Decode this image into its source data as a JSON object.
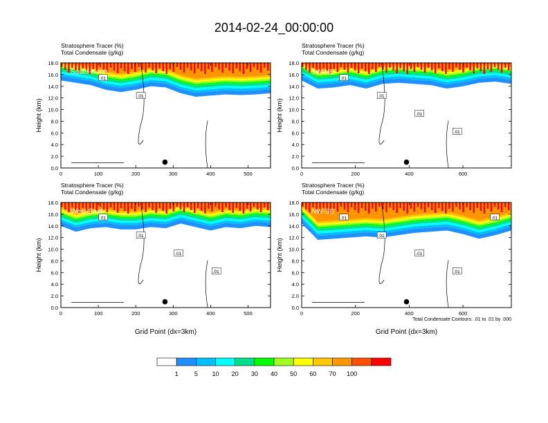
{
  "title": "2014-02-24_00:00:00",
  "chart_data": [
    {
      "type": "heatmap",
      "panel_label": "South-North",
      "left_labels": [
        "Stratosphere Tracer   (%)",
        "Total Condensate   (g/kg)"
      ],
      "ylabel": "Height (km)",
      "xlabel": "",
      "xlim": [
        0,
        560
      ],
      "ylim": [
        0,
        18
      ],
      "x_ticks": [
        "0",
        "100",
        "200",
        "300",
        "400",
        "500"
      ],
      "y_ticks": [
        "0.0",
        "2.0",
        "4.0",
        "6.0",
        "8.0",
        "10.0",
        "12.0",
        "14.0",
        "16.0",
        "18.0"
      ],
      "contour_labels": [
        ".01",
        ".01"
      ],
      "marker": {
        "x": 278,
        "y": 1.0
      },
      "tracer_profile": {
        "x": [
          0,
          40,
          80,
          120,
          160,
          200,
          240,
          280,
          320,
          360,
          400,
          440,
          480,
          520,
          560
        ],
        "base_km": [
          15.0,
          14.6,
          14.2,
          13.4,
          13.0,
          13.4,
          14.0,
          13.8,
          12.8,
          12.2,
          12.4,
          12.6,
          12.5,
          12.6,
          12.8
        ]
      }
    },
    {
      "type": "heatmap",
      "panel_label": "SW-NE",
      "left_labels": [
        "Stratosphere Tracer   (%)",
        "Total Condensate   (g/kg)"
      ],
      "ylabel": "Height (km)",
      "xlabel": "",
      "xlim": [
        0,
        780
      ],
      "ylim": [
        0,
        18
      ],
      "x_ticks": [
        "0",
        "200",
        "400",
        "600"
      ],
      "y_ticks": [
        "0.0",
        "2.0",
        "4.0",
        "6.0",
        "8.0",
        "10.0",
        "12.0",
        "14.0",
        "16.0",
        "18.0"
      ],
      "contour_labels": [
        ".01",
        ".01",
        ".01",
        ".01"
      ],
      "marker": {
        "x": 390,
        "y": 1.0
      },
      "tracer_profile": {
        "x": [
          0,
          60,
          120,
          180,
          240,
          300,
          360,
          420,
          480,
          540,
          600,
          660,
          720,
          780
        ],
        "base_km": [
          15.0,
          13.6,
          13.8,
          14.2,
          13.6,
          14.4,
          14.6,
          14.4,
          14.2,
          13.6,
          14.0,
          14.6,
          14.8,
          14.4
        ]
      }
    },
    {
      "type": "heatmap",
      "panel_label": "West-East",
      "left_labels": [
        "Stratosphere Tracer   (%)",
        "Total Condensate   (g/kg)"
      ],
      "ylabel": "Height (km)",
      "xlabel": "Grid Point (dx=3km)",
      "xlim": [
        0,
        560
      ],
      "ylim": [
        0,
        18
      ],
      "x_ticks": [
        "0",
        "100",
        "200",
        "300",
        "400",
        "500"
      ],
      "y_ticks": [
        "0.0",
        "2.0",
        "4.0",
        "6.0",
        "8.0",
        "10.0",
        "12.0",
        "14.0",
        "16.0",
        "18.0"
      ],
      "contour_labels": [
        ".01",
        ".01",
        ".01",
        ".01"
      ],
      "marker": {
        "x": 278,
        "y": 1.0
      },
      "tracer_profile": {
        "x": [
          0,
          40,
          80,
          120,
          160,
          200,
          240,
          280,
          320,
          360,
          400,
          440,
          480,
          520,
          560
        ],
        "base_km": [
          14.0,
          13.0,
          13.6,
          13.8,
          13.4,
          13.4,
          13.8,
          13.6,
          14.4,
          13.8,
          13.2,
          13.8,
          13.6,
          14.0,
          13.8
        ]
      }
    },
    {
      "type": "heatmap",
      "panel_label": "NW-SE",
      "left_labels": [
        "Stratosphere Tracer   (%)",
        "Total Condensate   (g/kg)"
      ],
      "ylabel": "Height (km)",
      "xlabel": "Grid Point (dx=3km)",
      "xlim": [
        0,
        780
      ],
      "ylim": [
        0,
        18
      ],
      "x_ticks": [
        "0",
        "200",
        "400",
        "600"
      ],
      "y_ticks": [
        "0.0",
        "2.0",
        "4.0",
        "6.0",
        "8.0",
        "10.0",
        "12.0",
        "14.0",
        "16.0",
        "18.0"
      ],
      "contour_labels": [
        ".01",
        ".01",
        ".01",
        ".01",
        ".01"
      ],
      "marker": {
        "x": 390,
        "y": 1.0
      },
      "footnote": "Total Condensate Contours: .01 to .01 by .000",
      "tracer_profile": {
        "x": [
          0,
          60,
          120,
          180,
          240,
          300,
          360,
          420,
          480,
          540,
          600,
          660,
          720,
          780
        ],
        "base_km": [
          14.4,
          11.6,
          11.8,
          12.0,
          12.2,
          12.0,
          12.4,
          12.8,
          13.0,
          13.2,
          12.6,
          11.8,
          12.4,
          13.2
        ]
      }
    }
  ],
  "colorbar": {
    "levels": [
      "1",
      "5",
      "10",
      "20",
      "30",
      "40",
      "50",
      "60",
      "70",
      "100"
    ],
    "colors": [
      "#ffffff",
      "#1e90ff",
      "#00bfff",
      "#00ffff",
      "#00e08c",
      "#00ff00",
      "#a0ff20",
      "#ffff00",
      "#ffc800",
      "#ff9600",
      "#ff5000",
      "#ff0000"
    ]
  }
}
